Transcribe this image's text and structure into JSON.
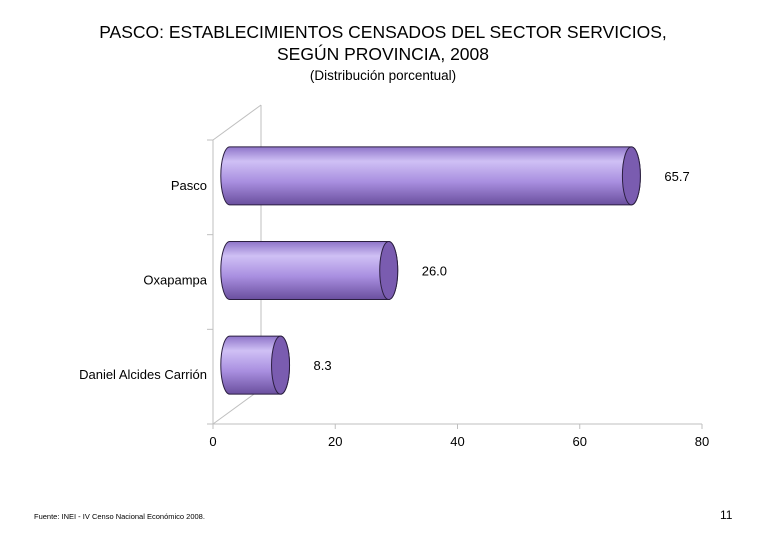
{
  "title_line1": "PASCO: ESTABLECIMIENTOS CENSADOS DEL SECTOR SERVICIOS,",
  "title_line2": "SEGÚN PROVINCIA, 2008",
  "subtitle": "(Distribución porcentual)",
  "source": "Fuente: INEI - IV Censo Nacional Económico 2008.",
  "page_number": "11",
  "colors": {
    "bar_front": "#a98fe0",
    "bar_light": "#cfc0f5",
    "bar_dark": "#6a4f9e",
    "bar_cap": "#7a5cb0",
    "axis": "#bfbfbf"
  },
  "chart_data": {
    "type": "bar",
    "orientation": "horizontal",
    "style": "3d-cylinder",
    "title": "PASCO: ESTABLECIMIENTOS CENSADOS DEL SECTOR SERVICIOS, SEGÚN PROVINCIA, 2008",
    "subtitle": "(Distribución porcentual)",
    "categories": [
      "Pasco",
      "Oxapampa",
      "Daniel Alcides Carrión"
    ],
    "values": [
      65.7,
      26.0,
      8.3
    ],
    "value_labels": [
      "65.7",
      "26.0",
      "8.3"
    ],
    "xlim": [
      0,
      80
    ],
    "xticks": [
      "0",
      "20",
      "40",
      "60",
      "80"
    ],
    "xlabel": "",
    "ylabel": "",
    "grid": false,
    "legend": "none"
  }
}
